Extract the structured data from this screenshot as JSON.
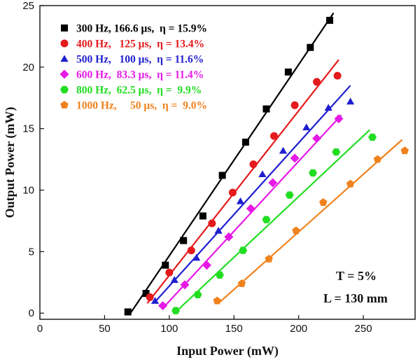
{
  "chart_data": {
    "type": "scatter",
    "xlabel": "Input Power (mW)",
    "ylabel": "Output Power (mW)",
    "xlim": [
      0,
      290
    ],
    "ylim": [
      -0.5,
      25
    ],
    "xticks": [
      0,
      50,
      100,
      150,
      200,
      250
    ],
    "yticks": [
      0,
      5,
      10,
      15,
      20,
      25
    ],
    "grid": false,
    "legend_position": "top-left",
    "annotations": [
      "T = 5%",
      "L = 130 mm"
    ],
    "series": [
      {
        "name": "300 Hz, 166.6 μs,  η = 15.9%",
        "color": "#000000",
        "marker": "square",
        "points": [
          [
            68,
            0.1
          ],
          [
            82,
            1.6
          ],
          [
            97,
            3.9
          ],
          [
            111,
            5.9
          ],
          [
            126,
            7.9
          ],
          [
            141,
            11.2
          ],
          [
            159,
            13.9
          ],
          [
            175,
            16.6
          ],
          [
            192,
            19.6
          ],
          [
            209,
            21.6
          ],
          [
            224,
            23.8
          ]
        ],
        "fit": [
          [
            70,
            0.0
          ],
          [
            227,
            24.4
          ]
        ]
      },
      {
        "name": "400 Hz,   125 μs,  η = 13.4%",
        "color": "#e41a1c",
        "marker": "circle",
        "points": [
          [
            85,
            1.3
          ],
          [
            100,
            3.3
          ],
          [
            117,
            5.1
          ],
          [
            133,
            7.3
          ],
          [
            149,
            9.8
          ],
          [
            165,
            12.1
          ],
          [
            181,
            14.4
          ],
          [
            197,
            16.9
          ],
          [
            214,
            18.8
          ],
          [
            230,
            19.3
          ]
        ],
        "fit": [
          [
            83,
            0.8
          ],
          [
            231,
            20.6
          ]
        ]
      },
      {
        "name": "500 Hz,   100 μs,  η = 11.6%",
        "color": "#1f1fd0",
        "marker": "triangle",
        "points": [
          [
            89,
            1.0
          ],
          [
            104,
            2.7
          ],
          [
            121,
            4.5
          ],
          [
            138,
            6.7
          ],
          [
            155,
            9.1
          ],
          [
            172,
            11.3
          ],
          [
            188,
            13.2
          ],
          [
            206,
            15.1
          ],
          [
            223,
            16.7
          ],
          [
            240,
            17.2
          ]
        ],
        "fit": [
          [
            88,
            0.8
          ],
          [
            240,
            18.5
          ]
        ]
      },
      {
        "name": "600 Hz,  83.3 μs,  η = 11.4%",
        "color": "#e619e6",
        "marker": "diamond",
        "points": [
          [
            95,
            0.6
          ],
          [
            112,
            2.3
          ],
          [
            129,
            3.9
          ],
          [
            146,
            6.2
          ],
          [
            163,
            8.5
          ],
          [
            180,
            10.6
          ],
          [
            197,
            12.6
          ],
          [
            214,
            14.2
          ],
          [
            231,
            15.8
          ]
        ],
        "fit": [
          [
            95,
            0.4
          ],
          [
            233,
            16.1
          ]
        ]
      },
      {
        "name": "800 Hz,  62.5 μs,  η =  9.9%",
        "color": "#22dd22",
        "marker": "hexagon",
        "points": [
          [
            105,
            0.2
          ],
          [
            122,
            1.5
          ],
          [
            139,
            3.1
          ],
          [
            157,
            5.1
          ],
          [
            175,
            7.6
          ],
          [
            193,
            9.6
          ],
          [
            211,
            11.4
          ],
          [
            229,
            13.1
          ],
          [
            257,
            14.3
          ]
        ],
        "fit": [
          [
            105,
            0.1
          ],
          [
            255,
            14.9
          ]
        ]
      },
      {
        "name": "1000 Hz,     50 μs,  η =  9.0%",
        "color": "#f0821e",
        "marker": "pentagon",
        "points": [
          [
            137,
            1.0
          ],
          [
            156,
            2.4
          ],
          [
            177,
            4.4
          ],
          [
            198,
            6.7
          ],
          [
            219,
            9.0
          ],
          [
            240,
            10.5
          ],
          [
            261,
            12.5
          ],
          [
            282,
            13.2
          ]
        ],
        "fit": [
          [
            138,
            0.8
          ],
          [
            280,
            14.1
          ]
        ]
      }
    ]
  }
}
